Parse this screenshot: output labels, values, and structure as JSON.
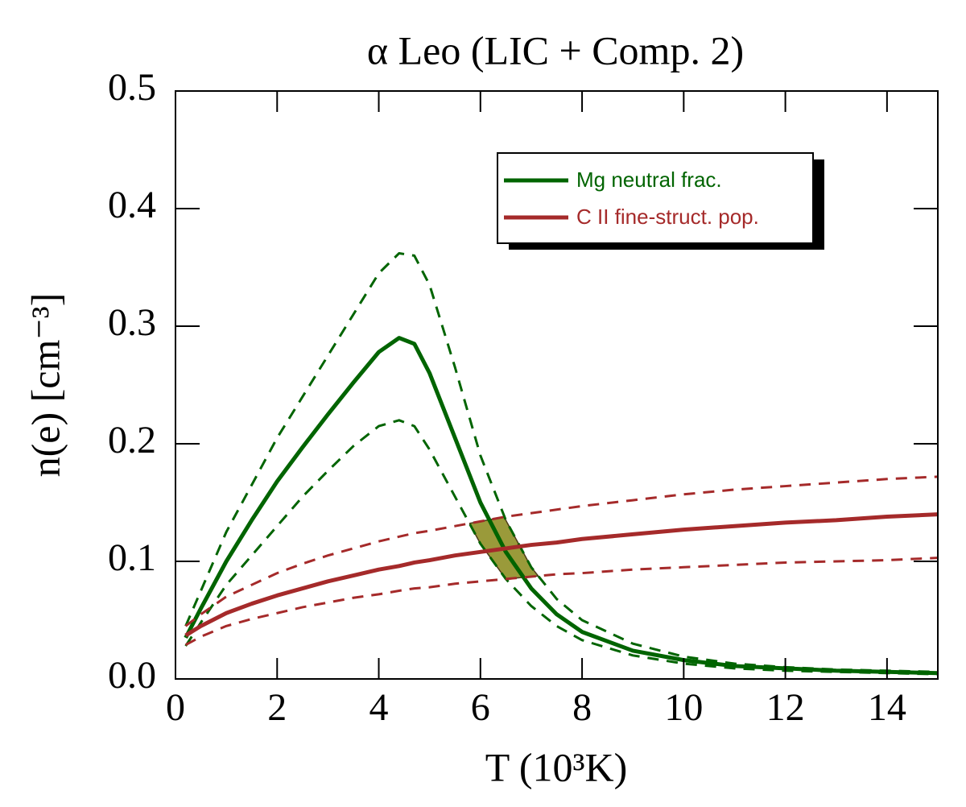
{
  "chart_data": {
    "type": "line",
    "title": "α Leo (LIC + Comp. 2)",
    "x_label": "T (10³K)",
    "y_label": "n(e) [cm⁻³]",
    "x": [
      0.2,
      0.5,
      1,
      1.5,
      2,
      2.5,
      3,
      3.5,
      4,
      4.4,
      4.7,
      5,
      5.5,
      6,
      6.5,
      7,
      7.5,
      8,
      9,
      10,
      11,
      12,
      13,
      14,
      15
    ],
    "series": [
      {
        "name": "Mg neutral frac.",
        "color": "#006400",
        "values": [
          0.035,
          0.06,
          0.1,
          0.135,
          0.168,
          0.197,
          0.225,
          0.252,
          0.278,
          0.29,
          0.285,
          0.26,
          0.205,
          0.15,
          0.108,
          0.077,
          0.055,
          0.04,
          0.024,
          0.016,
          0.011,
          0.009,
          0.007,
          0.006,
          0.005
        ],
        "upper": [
          0.045,
          0.075,
          0.125,
          0.165,
          0.205,
          0.24,
          0.275,
          0.31,
          0.345,
          0.362,
          0.36,
          0.335,
          0.265,
          0.19,
          0.135,
          0.095,
          0.068,
          0.05,
          0.03,
          0.019,
          0.013,
          0.01,
          0.008,
          0.007,
          0.006
        ],
        "lower": [
          0.028,
          0.048,
          0.08,
          0.105,
          0.13,
          0.155,
          0.177,
          0.198,
          0.215,
          0.22,
          0.215,
          0.195,
          0.155,
          0.115,
          0.085,
          0.062,
          0.045,
          0.033,
          0.02,
          0.013,
          0.009,
          0.007,
          0.006,
          0.005,
          0.004
        ]
      },
      {
        "name": "C II fine-struct. pop.",
        "color": "#a52a2a",
        "values": [
          0.037,
          0.045,
          0.056,
          0.064,
          0.071,
          0.077,
          0.083,
          0.088,
          0.093,
          0.096,
          0.099,
          0.101,
          0.105,
          0.108,
          0.111,
          0.114,
          0.116,
          0.119,
          0.123,
          0.127,
          0.13,
          0.133,
          0.135,
          0.138,
          0.14
        ],
        "upper": [
          0.045,
          0.055,
          0.07,
          0.08,
          0.09,
          0.098,
          0.105,
          0.111,
          0.117,
          0.121,
          0.124,
          0.126,
          0.13,
          0.134,
          0.138,
          0.141,
          0.144,
          0.147,
          0.152,
          0.157,
          0.161,
          0.164,
          0.167,
          0.17,
          0.172
        ],
        "lower": [
          0.029,
          0.036,
          0.045,
          0.051,
          0.056,
          0.061,
          0.065,
          0.069,
          0.072,
          0.075,
          0.077,
          0.078,
          0.081,
          0.083,
          0.085,
          0.087,
          0.089,
          0.09,
          0.093,
          0.095,
          0.097,
          0.099,
          0.1,
          0.101,
          0.103
        ]
      }
    ],
    "overlap_color": "#9a9a3a",
    "xlim": [
      0,
      15
    ],
    "xticks": [
      0,
      2,
      4,
      6,
      8,
      10,
      12,
      14
    ],
    "ylim": [
      0,
      0.5
    ],
    "yticks": [
      {
        "value": 0,
        "label": "0.0"
      },
      0.1,
      0.2,
      0.3,
      0.4,
      0.5
    ],
    "legend_position": "upper right"
  }
}
